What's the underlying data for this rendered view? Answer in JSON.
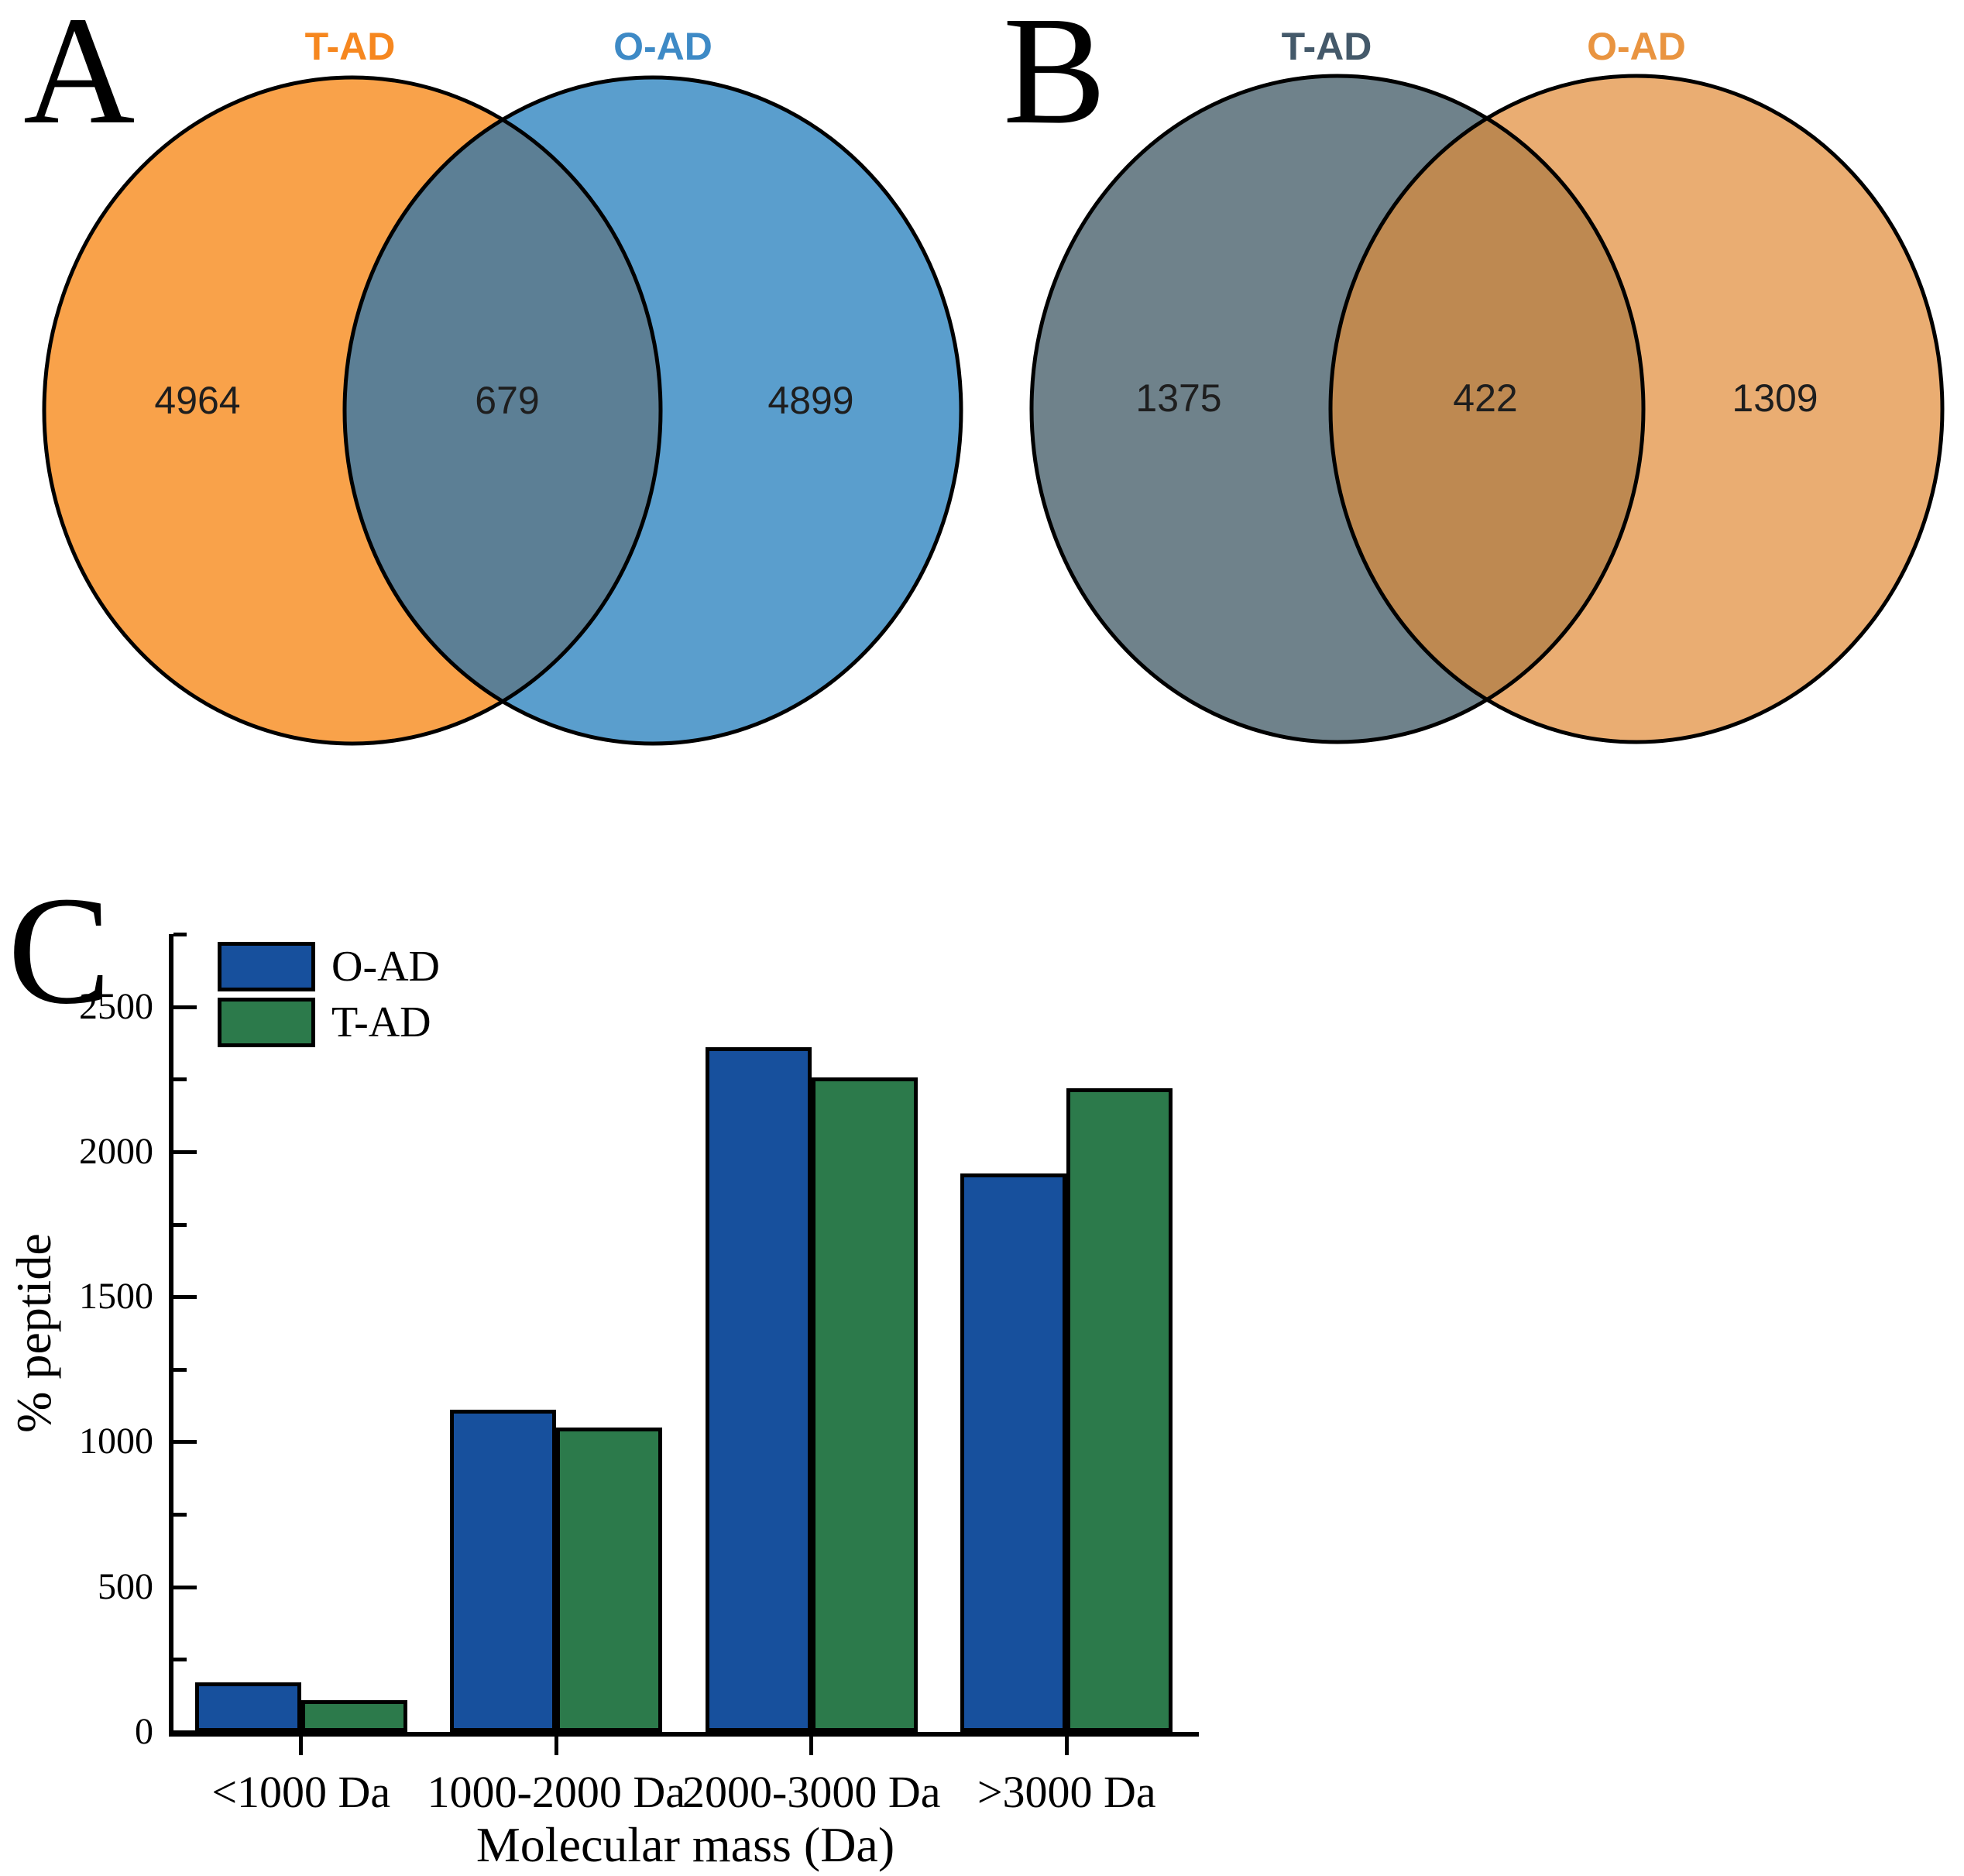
{
  "panels": {
    "a": {
      "label": "A",
      "venn": {
        "left": {
          "name": "T-AD",
          "label_color": "#F6871F",
          "fill": "#F9A24A",
          "count": "4964"
        },
        "right": {
          "name": "O-AD",
          "label_color": "#3E8AC6",
          "fill": "#5A9ECD",
          "count": "4899"
        },
        "overlap": {
          "count": "679",
          "fill": "#5C7F95"
        },
        "outline_color": "#000000"
      }
    },
    "b": {
      "label": "B",
      "venn": {
        "left": {
          "name": "T-AD",
          "label_color": "#44596A",
          "fill": "#6F828B",
          "count": "1375"
        },
        "right": {
          "name": "O-AD",
          "label_color": "#E99440",
          "fill": "#EAAD72",
          "count": "1309"
        },
        "overlap": {
          "count": "422",
          "fill": "#BE8951"
        },
        "outline_color": "#000000"
      }
    },
    "c": {
      "label": "C"
    }
  },
  "chart_data": {
    "type": "bar",
    "categories": [
      "<1000 Da",
      "1000-2000 Da",
      "2000-3000 Da",
      ">3000 Da"
    ],
    "series": [
      {
        "name": "O-AD",
        "color": "#17509D",
        "values": [
          170,
          1110,
          2360,
          1925
        ]
      },
      {
        "name": "T-AD",
        "color": "#2C7A4B",
        "values": [
          110,
          1050,
          2255,
          2220
        ]
      }
    ],
    "title": "",
    "xlabel": "Molecular mass (Da)",
    "ylabel": "% peptide",
    "ylim": [
      0,
      2750
    ],
    "ytick_interval": 500,
    "yminor_interval": 250,
    "ytick_labels": [
      "0",
      "500",
      "1000",
      "1500",
      "2000",
      "2500"
    ],
    "legend_position": "top-left",
    "grid": false,
    "bar_edge_color": "#000000",
    "axis_color": "#000000"
  }
}
